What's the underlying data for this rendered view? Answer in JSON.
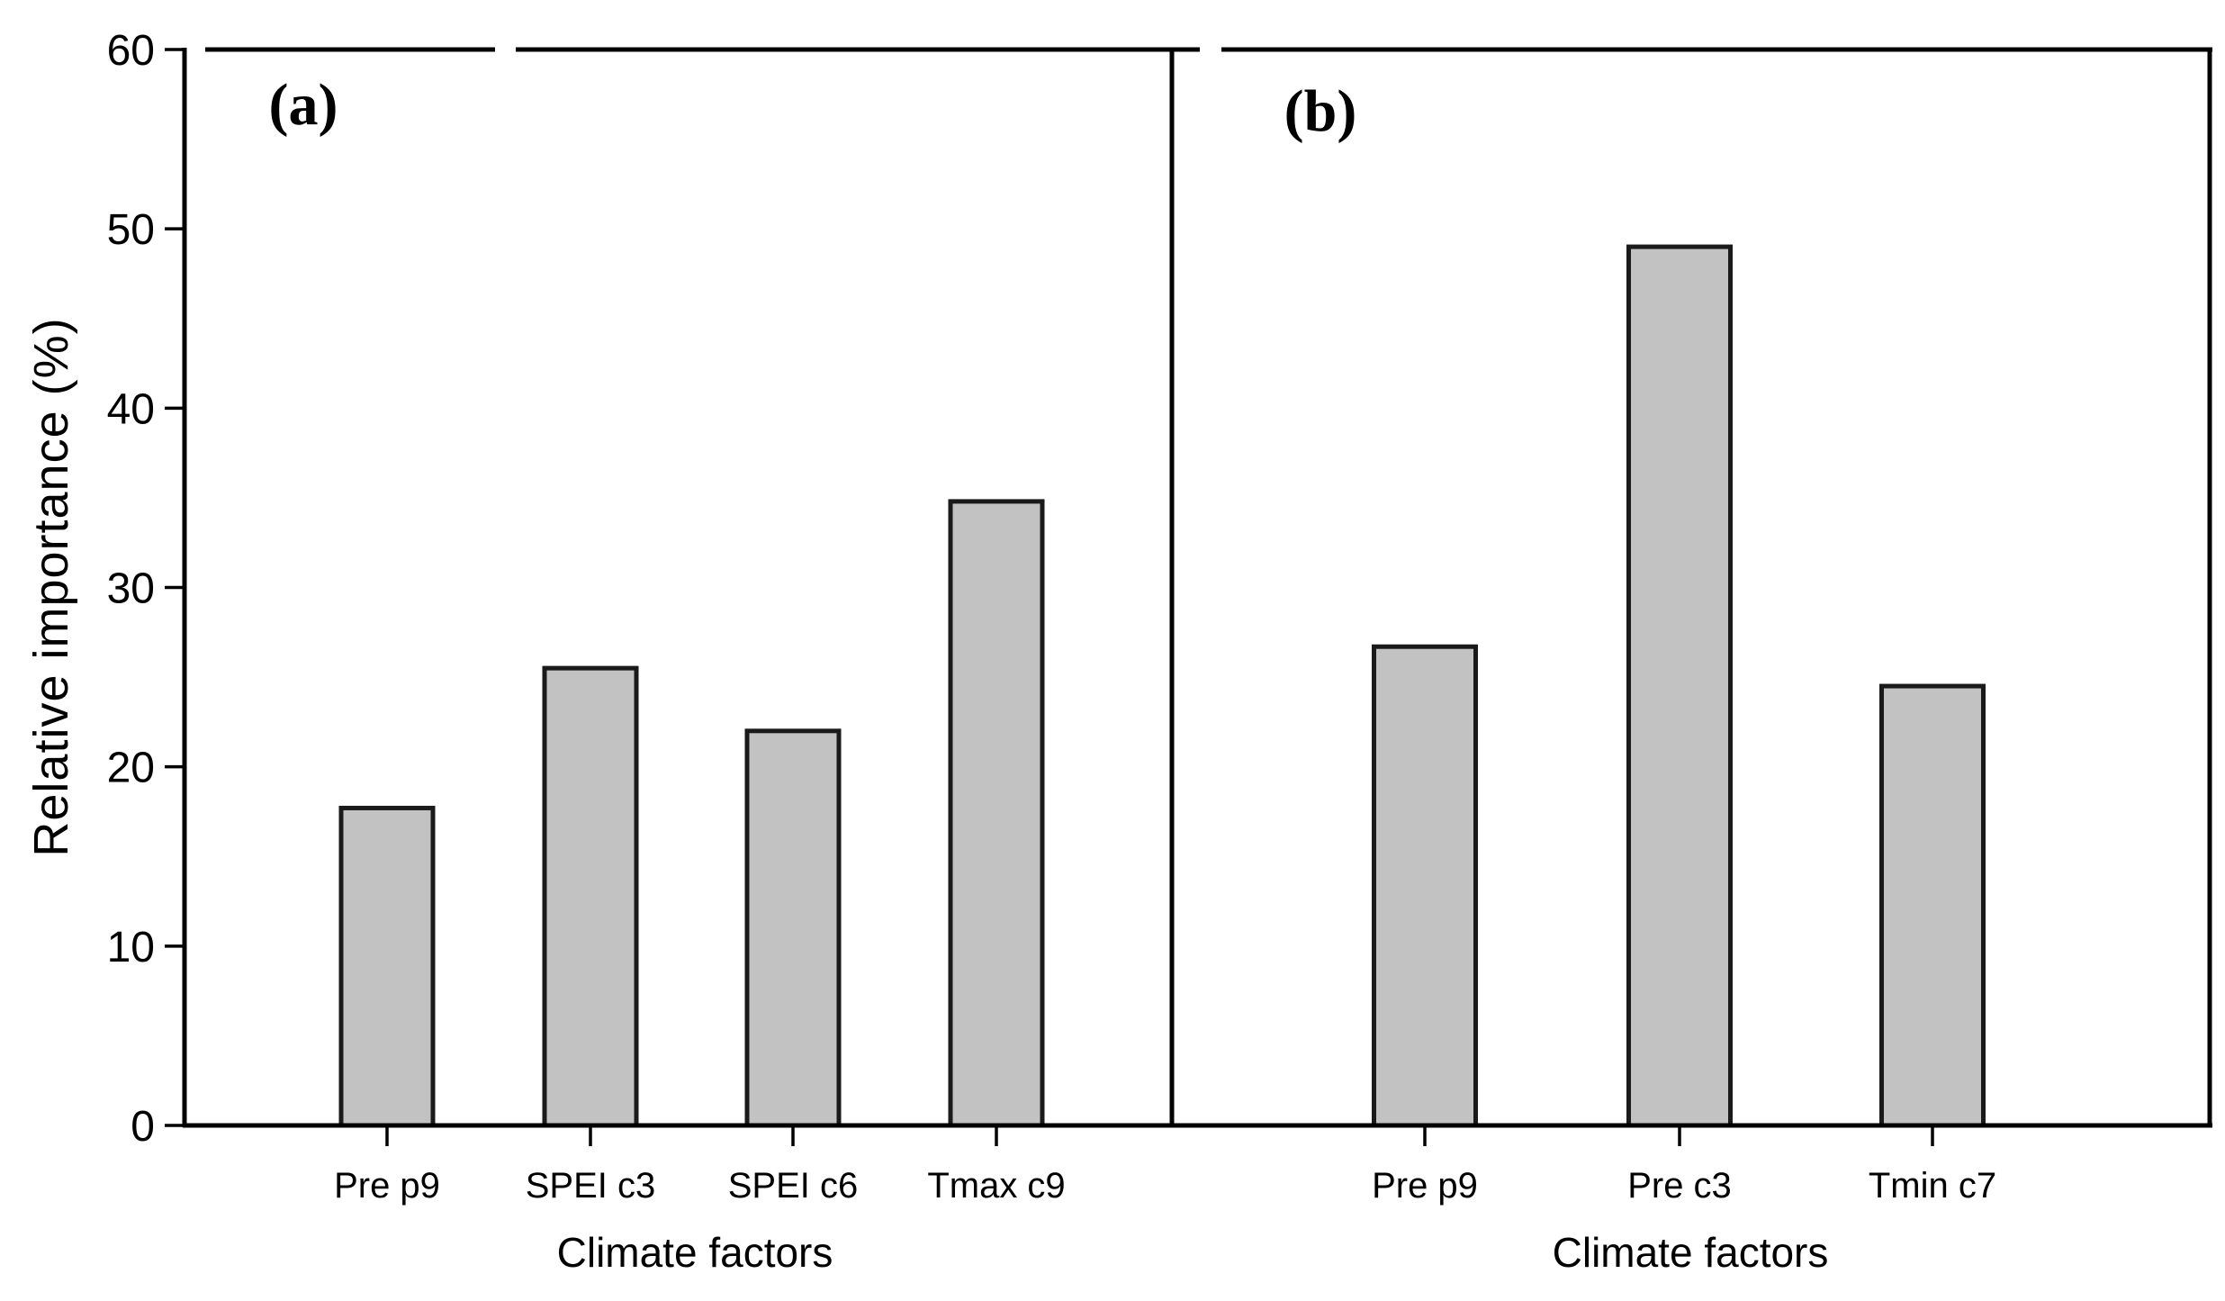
{
  "figure": {
    "background": "#ffffff",
    "text_color": "#000000",
    "ylabel": "Relative importance (%)"
  },
  "chart_data": [
    {
      "type": "bar",
      "title": "(a)",
      "categories": [
        "Pre p9",
        "SPEI c3",
        "SPEI c6",
        "Tmax c9"
      ],
      "values": [
        17.7,
        25.5,
        22.0,
        34.8
      ],
      "xlabel": "Climate factors",
      "ylabel": "Relative importance (%)",
      "ylim": [
        0,
        60
      ],
      "yticks": [
        0,
        10,
        20,
        30,
        40,
        50,
        60
      ],
      "bar_fill": "#c2c2c2",
      "bar_border": "#1a1a1a",
      "grid": false,
      "legend": "none"
    },
    {
      "type": "bar",
      "title": "(b)",
      "categories": [
        "Pre p9",
        "Pre c3",
        "Tmin c7"
      ],
      "values": [
        26.7,
        49.0,
        24.5
      ],
      "xlabel": "Climate factors",
      "ylabel": "Relative importance (%)",
      "ylim": [
        0,
        60
      ],
      "yticks": [
        0,
        10,
        20,
        30,
        40,
        50,
        60
      ],
      "bar_fill": "#c2c2c2",
      "bar_border": "#1a1a1a",
      "grid": false,
      "legend": "none"
    }
  ]
}
